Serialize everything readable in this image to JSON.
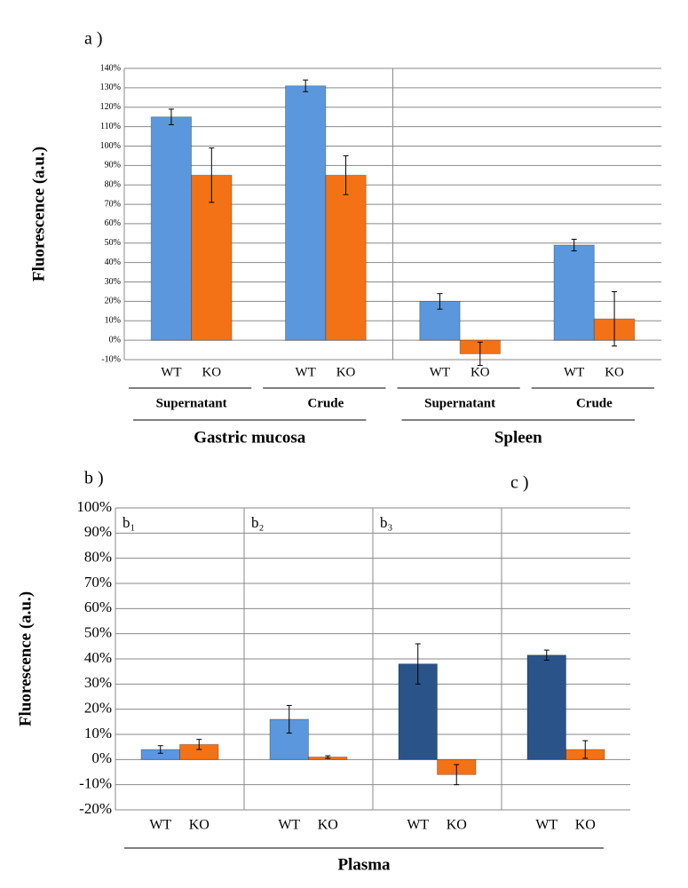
{
  "chart_data": [
    {
      "type": "bar",
      "panel": "a )",
      "ylabel": "Fluorescence (a.u.)",
      "ylim": [
        -10,
        140
      ],
      "yticks": [
        {
          "value": -10,
          "label": "-10%"
        },
        {
          "value": 0,
          "label": "0%"
        },
        {
          "value": 10,
          "label": "10%"
        },
        {
          "value": 20,
          "label": "20%"
        },
        {
          "value": 30,
          "label": "30%"
        },
        {
          "value": 40,
          "label": "40%"
        },
        {
          "value": 50,
          "label": "50%"
        },
        {
          "value": 60,
          "label": "60%"
        },
        {
          "value": 70,
          "label": "70%"
        },
        {
          "value": 80,
          "label": "80%"
        },
        {
          "value": 90,
          "label": "90%"
        },
        {
          "value": 100,
          "label": "100%"
        },
        {
          "value": 110,
          "label": "110%"
        },
        {
          "value": 120,
          "label": "120%"
        },
        {
          "value": 130,
          "label": "130%"
        },
        {
          "value": 140,
          "label": "140%"
        }
      ],
      "grid": true,
      "dividers": "section",
      "group_label_position": "bottom",
      "sections": [
        {
          "name": "Gastric mucosa",
          "groups": [
            {
              "name": "Supernatant",
              "categories": [
                "WT",
                "KO"
              ],
              "values": [
                115,
                85
              ],
              "errors": [
                4,
                14
              ],
              "colors": [
                "#5b97dc",
                "#f47216"
              ]
            },
            {
              "name": "Crude",
              "categories": [
                "WT",
                "KO"
              ],
              "values": [
                131,
                85
              ],
              "errors": [
                3,
                10
              ],
              "colors": [
                "#5b97dc",
                "#f47216"
              ]
            }
          ]
        },
        {
          "name": "Spleen",
          "groups": [
            {
              "name": "Supernatant",
              "categories": [
                "WT",
                "KO"
              ],
              "values": [
                20,
                -7
              ],
              "errors": [
                4,
                6
              ],
              "colors": [
                "#5b97dc",
                "#f47216"
              ]
            },
            {
              "name": "Crude",
              "categories": [
                "WT",
                "KO"
              ],
              "values": [
                49,
                11
              ],
              "errors": [
                3,
                14
              ],
              "colors": [
                "#5b97dc",
                "#f47216"
              ]
            }
          ]
        }
      ]
    },
    {
      "type": "bar",
      "panel": "b )",
      "ylabel": "Fluorescence (a.u.)",
      "ylim": [
        -20,
        100
      ],
      "yticks": [
        {
          "value": -20,
          "label": "-20%"
        },
        {
          "value": -10,
          "label": "-10%"
        },
        {
          "value": 0,
          "label": "0%"
        },
        {
          "value": 10,
          "label": "10%"
        },
        {
          "value": 20,
          "label": "20%"
        },
        {
          "value": 30,
          "label": "30%"
        },
        {
          "value": 40,
          "label": "40%"
        },
        {
          "value": 50,
          "label": "50%"
        },
        {
          "value": 60,
          "label": "60%"
        },
        {
          "value": 70,
          "label": "70%"
        },
        {
          "value": 80,
          "label": "80%"
        },
        {
          "value": 90,
          "label": "90%"
        },
        {
          "value": 100,
          "label": "100%"
        }
      ],
      "grid": true,
      "dividers": "group",
      "group_label_position": "top",
      "sections": [
        {
          "name": "Plasma",
          "groups": [
            {
              "name": "b₁",
              "categories": [
                "WT",
                "KO"
              ],
              "values": [
                4,
                6
              ],
              "errors": [
                1.5,
                2
              ],
              "colors": [
                "#5b97dc",
                "#f47216"
              ]
            },
            {
              "name": "b₂",
              "categories": [
                "WT",
                "KO"
              ],
              "values": [
                16,
                1
              ],
              "errors": [
                5.5,
                0.5
              ],
              "colors": [
                "#5b97dc",
                "#f47216"
              ]
            },
            {
              "name": "b₃",
              "categories": [
                "WT",
                "KO"
              ],
              "values": [
                38,
                -6
              ],
              "errors": [
                8,
                4
              ],
              "colors": [
                "#2a5489",
                "#f47216"
              ]
            },
            {
              "panel": "c )",
              "categories": [
                "WT",
                "KO"
              ],
              "values": [
                41.5,
                4
              ],
              "errors": [
                2,
                3.5
              ],
              "colors": [
                "#2a5489",
                "#f47216"
              ]
            }
          ]
        }
      ]
    }
  ]
}
